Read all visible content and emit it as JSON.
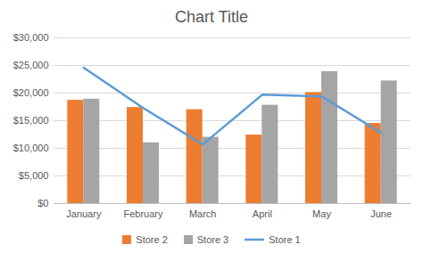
{
  "chart_data": {
    "type": "bar",
    "title": "Chart Title",
    "categories": [
      "January",
      "February",
      "March",
      "April",
      "May",
      "June"
    ],
    "series": [
      {
        "name": "Store 2",
        "type": "bar",
        "color": "#ed7d31",
        "values": [
          18700,
          17400,
          17000,
          12400,
          20100,
          14500
        ]
      },
      {
        "name": "Store 3",
        "type": "bar",
        "color": "#a5a5a5",
        "values": [
          18900,
          11000,
          12000,
          17800,
          23900,
          22200
        ]
      },
      {
        "name": "Store 1",
        "type": "line",
        "color": "#5b9bd5",
        "values": [
          24600,
          17300,
          10700,
          19700,
          19400,
          12800
        ]
      }
    ],
    "ylim": [
      0,
      30000
    ],
    "yticks": [
      {
        "value": 0,
        "label": "$0"
      },
      {
        "value": 5000,
        "label": "$5,000"
      },
      {
        "value": 10000,
        "label": "$10,000"
      },
      {
        "value": 15000,
        "label": "$15,000"
      },
      {
        "value": 20000,
        "label": "$20,000"
      },
      {
        "value": 25000,
        "label": "$25,000"
      },
      {
        "value": 30000,
        "label": "$30,000"
      }
    ],
    "grid": true,
    "legend": "bottom"
  }
}
